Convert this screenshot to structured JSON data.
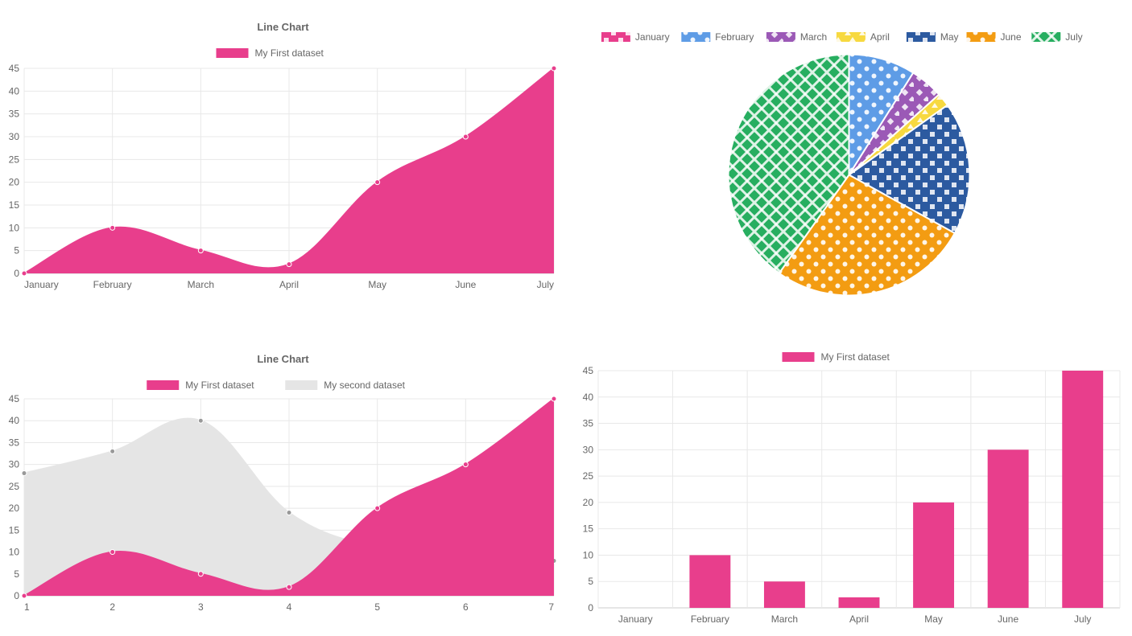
{
  "line_chart_1": {
    "type": "line-area",
    "title": "Line Chart",
    "legend": [
      {
        "label": "My First dataset",
        "color": "#e83e8c"
      }
    ],
    "x_categories": [
      "January",
      "February",
      "March",
      "April",
      "May",
      "June",
      "July"
    ],
    "series": [
      {
        "name": "My First dataset",
        "color": "#e83e8c",
        "values": [
          0,
          10,
          5,
          2,
          20,
          30,
          45
        ]
      }
    ],
    "ylim": [
      0,
      45
    ],
    "ytick_step": 5,
    "point_radius": 3,
    "background_color": "#ffffff",
    "grid_color": "#e8e8e8",
    "axis_color": "#cccccc",
    "title_fontsize": 13,
    "label_fontsize": 12
  },
  "pie_chart": {
    "type": "pie",
    "legend": [
      {
        "label": "January",
        "color": "#e83e8c",
        "pattern": "square"
      },
      {
        "label": "February",
        "color": "#5e9ce6",
        "pattern": "dot"
      },
      {
        "label": "March",
        "color": "#9b59b6",
        "pattern": "diamond"
      },
      {
        "label": "April",
        "color": "#f7d940",
        "pattern": "triangle"
      },
      {
        "label": "May",
        "color": "#2c5aa0",
        "pattern": "square"
      },
      {
        "label": "June",
        "color": "#f39c12",
        "pattern": "dot"
      },
      {
        "label": "July",
        "color": "#27ae60",
        "pattern": "cross"
      }
    ],
    "values": [
      0,
      10,
      5,
      2,
      20,
      30,
      45
    ],
    "start_angle": -90,
    "background_color": "#ffffff",
    "label_fontsize": 12
  },
  "line_chart_2": {
    "type": "line-area",
    "title": "Line Chart",
    "legend": [
      {
        "label": "My First dataset",
        "color": "#e83e8c"
      },
      {
        "label": "My second dataset",
        "color": "#e5e5e5",
        "point_color": "#999999"
      }
    ],
    "x_categories": [
      "1",
      "2",
      "3",
      "4",
      "5",
      "6",
      "7"
    ],
    "series": [
      {
        "name": "My second dataset",
        "color": "#e5e5e5",
        "point_color": "#999999",
        "values": [
          28,
          33,
          40,
          19,
          11,
          9,
          8
        ]
      },
      {
        "name": "My First dataset",
        "color": "#e83e8c",
        "values": [
          0,
          10,
          5,
          2,
          20,
          30,
          45
        ]
      }
    ],
    "ylim": [
      0,
      45
    ],
    "ytick_step": 5,
    "point_radius": 3,
    "background_color": "#ffffff",
    "grid_color": "#e8e8e8",
    "axis_color": "#cccccc",
    "title_fontsize": 13,
    "label_fontsize": 12
  },
  "bar_chart": {
    "type": "bar",
    "legend": [
      {
        "label": "My First dataset",
        "color": "#e83e8c"
      }
    ],
    "x_categories": [
      "January",
      "February",
      "March",
      "April",
      "May",
      "June",
      "July"
    ],
    "series": [
      {
        "name": "My First dataset",
        "color": "#e83e8c",
        "values": [
          0,
          10,
          5,
          2,
          20,
          30,
          45
        ]
      }
    ],
    "ylim": [
      0,
      45
    ],
    "ytick_step": 5,
    "bar_width": 0.55,
    "background_color": "#ffffff",
    "grid_color": "#e8e8e8",
    "axis_color": "#cccccc",
    "label_fontsize": 12
  }
}
